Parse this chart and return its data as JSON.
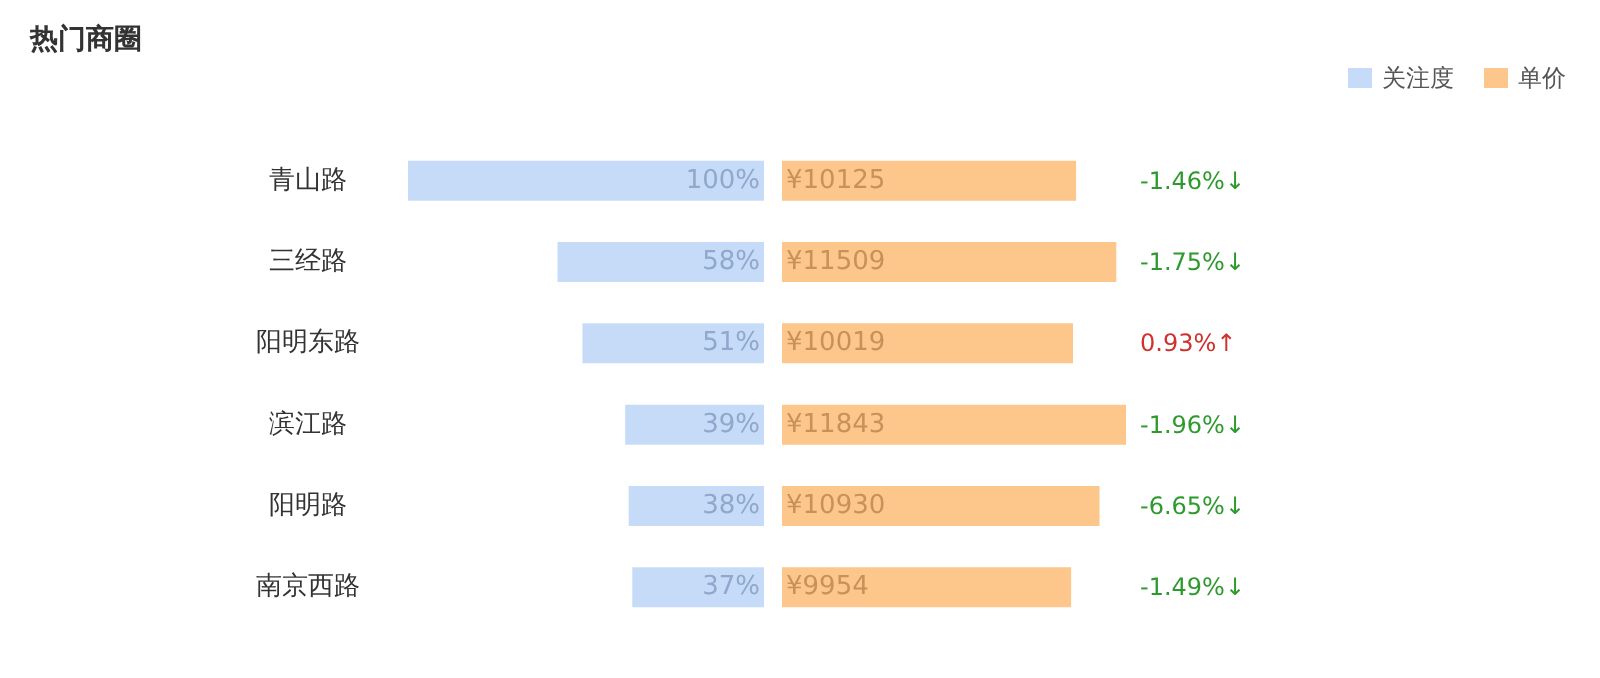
{
  "chart_data": [
    {
      "type": "bar",
      "orientation": "horizontal",
      "title": "热门商圈",
      "categories": [
        "青山路",
        "三经路",
        "阳明东路",
        "滨江路",
        "阳明路",
        "南京西路"
      ],
      "series": [
        {
          "name": "关注度",
          "color": "#c6dbf7",
          "values": [
            100,
            58,
            51,
            39,
            38,
            37
          ],
          "value_labels": [
            "100%",
            "58%",
            "51%",
            "39%",
            "38%",
            "37%"
          ]
        }
      ],
      "legend": "top right"
    },
    {
      "type": "bar",
      "orientation": "horizontal",
      "categories": [
        null,
        null,
        null,
        null,
        null,
        null
      ],
      "tick_labels": false,
      "series": [
        {
          "name": "单价",
          "color": "#fdc68b",
          "values": [
            10125,
            11509,
            10019,
            11843,
            10930,
            9954
          ],
          "value_labels": [
            "¥10125",
            "¥11509",
            "¥10019",
            "¥11843",
            "¥10930",
            "¥9954"
          ]
        }
      ],
      "annotations": [
        "-1.46%↓",
        "-1.75%↓",
        "0.93%↑",
        "-1.96%↓",
        "-6.65%↓",
        "-1.49%↓"
      ],
      "legend": "top right"
    }
  ]
}
